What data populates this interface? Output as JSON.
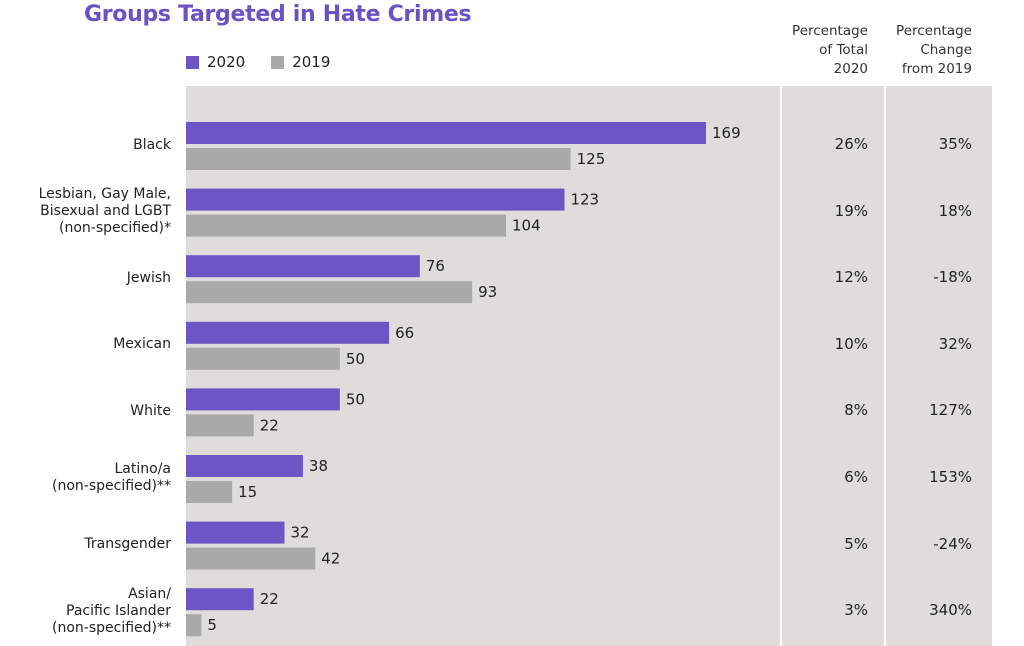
{
  "chart_data": {
    "type": "bar",
    "orientation": "horizontal",
    "title": "Groups Targeted in Hate Crimes",
    "legend": [
      {
        "name": "2020",
        "color": "#6c56c6"
      },
      {
        "name": "2019",
        "color": "#a9a9a9"
      }
    ],
    "categories": [
      [
        "Black"
      ],
      [
        "Lesbian, Gay Male,",
        "Bisexual and LGBT",
        "(non-specified)*"
      ],
      [
        "Jewish"
      ],
      [
        "Mexican"
      ],
      [
        "White"
      ],
      [
        "Latino/a",
        "(non-specified)**"
      ],
      [
        "Transgender"
      ],
      [
        "Asian/",
        "Pacific Islander",
        "(non-specified)**"
      ]
    ],
    "series": [
      {
        "name": "2020",
        "color": "#6c56c6",
        "values": [
          169,
          123,
          76,
          66,
          50,
          38,
          32,
          22
        ]
      },
      {
        "name": "2019",
        "color": "#a9a9a9",
        "values": [
          125,
          104,
          93,
          50,
          22,
          15,
          42,
          5
        ]
      }
    ],
    "xlim": [
      0,
      169
    ],
    "table_columns": [
      {
        "header": [
          "Percentage",
          "of Total",
          "2020"
        ],
        "values": [
          "26%",
          "19%",
          "12%",
          "10%",
          "8%",
          "6%",
          "5%",
          "3%"
        ]
      },
      {
        "header": [
          "Percentage",
          "Change",
          "from 2019"
        ],
        "values": [
          "35%",
          "18%",
          "-18%",
          "32%",
          "127%",
          "153%",
          "-24%",
          "340%"
        ]
      }
    ]
  },
  "colors": {
    "title": "#6a52c3",
    "panel": "#dedddc",
    "bar_2020": "#6c56c6",
    "bar_2019": "#a9a9a9"
  }
}
